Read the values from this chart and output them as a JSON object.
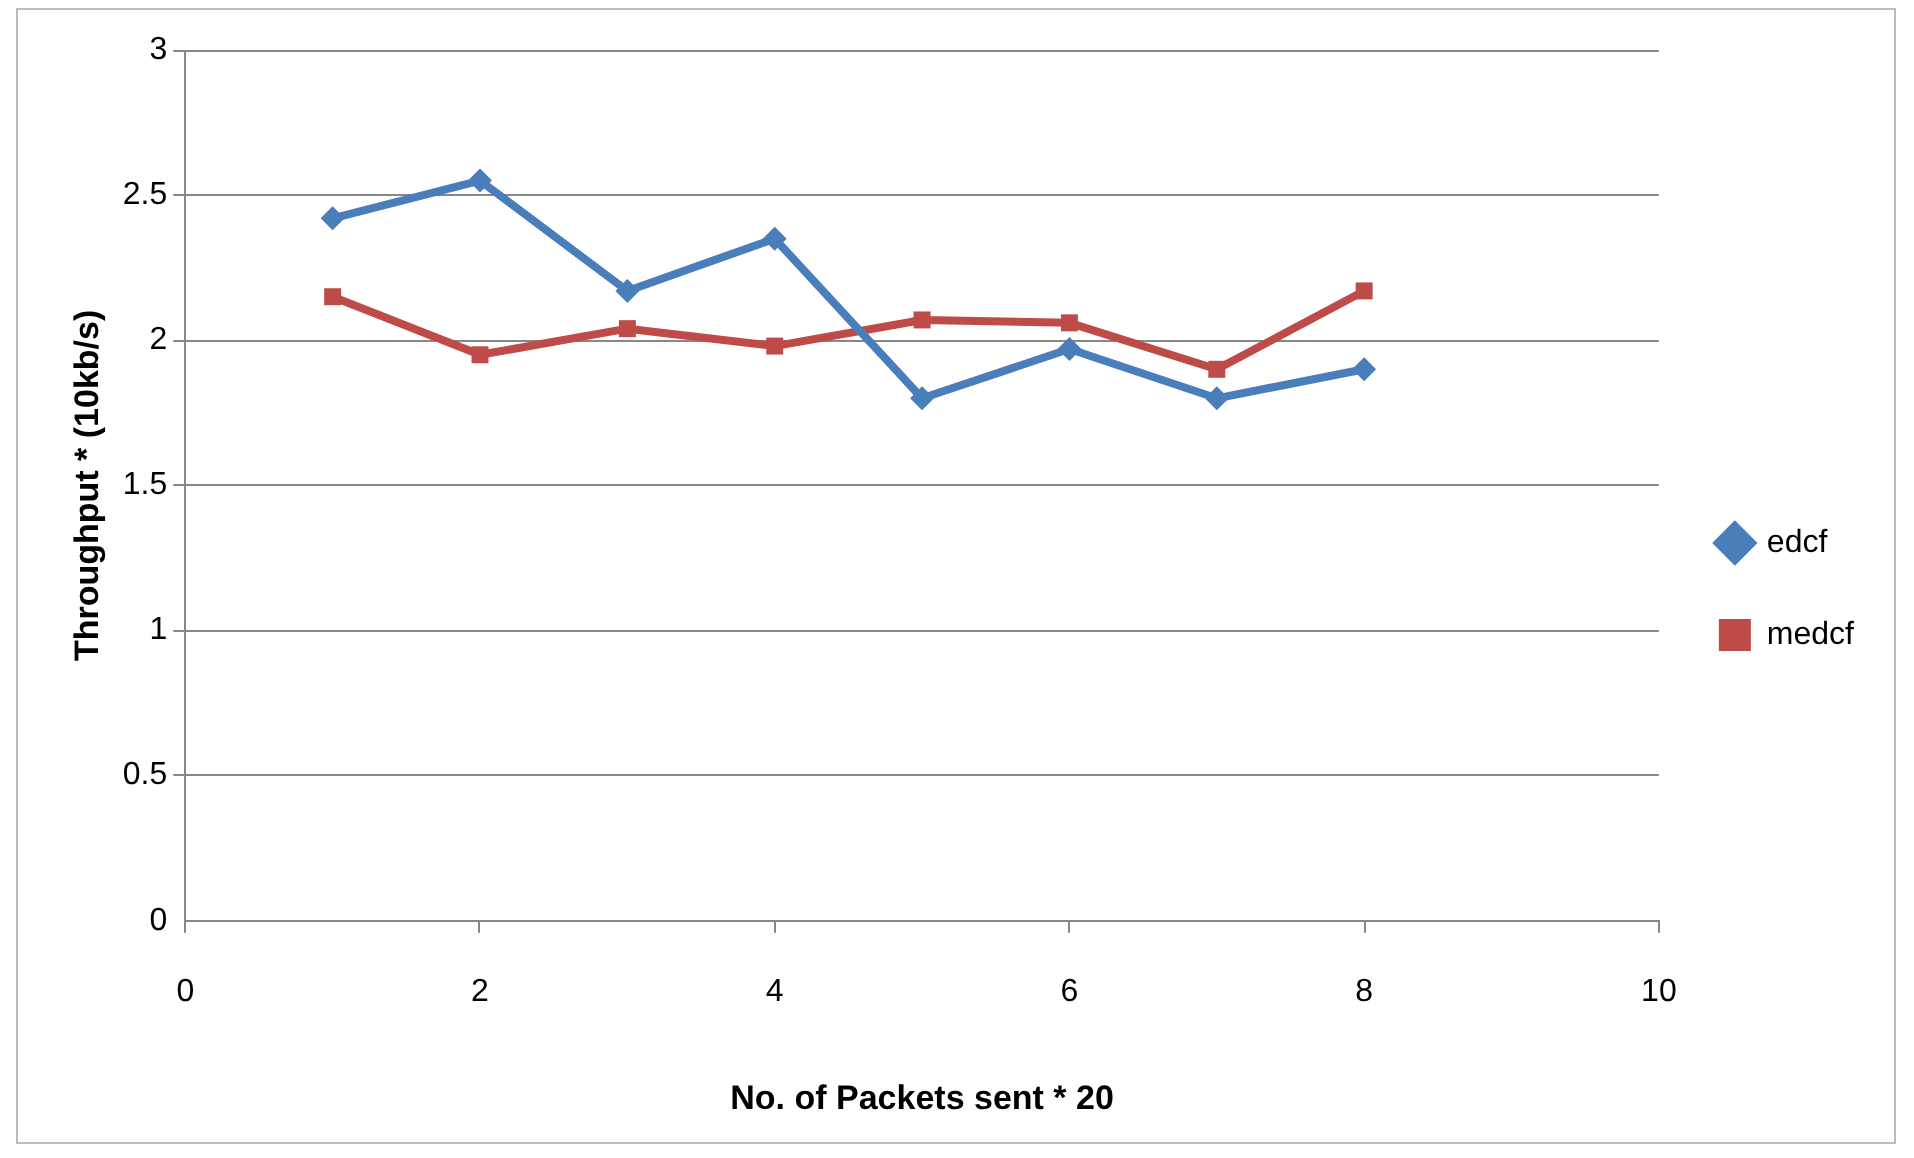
{
  "chart_data": {
    "type": "line",
    "xlabel": "No. of Packets sent * 20",
    "ylabel": "Throughput * (10kb/s)",
    "x": [
      1,
      2,
      3,
      4,
      5,
      6,
      7,
      8
    ],
    "series": [
      {
        "name": "edcf",
        "color": "#4a7ebb",
        "marker": "diamond",
        "values": [
          2.42,
          2.55,
          2.17,
          2.35,
          1.8,
          1.97,
          1.8,
          1.9
        ]
      },
      {
        "name": "medcf",
        "color": "#be4b48",
        "marker": "square",
        "values": [
          2.15,
          1.95,
          2.04,
          1.98,
          2.07,
          2.06,
          1.9,
          2.17
        ]
      }
    ],
    "xlim": [
      0,
      10
    ],
    "xticks": [
      0,
      2,
      4,
      6,
      8,
      10
    ],
    "ylim": [
      0,
      3
    ],
    "yticks": [
      0,
      0.5,
      1,
      1.5,
      2,
      2.5,
      3
    ],
    "grid": "y",
    "legend": "right",
    "line_style": "solid"
  }
}
